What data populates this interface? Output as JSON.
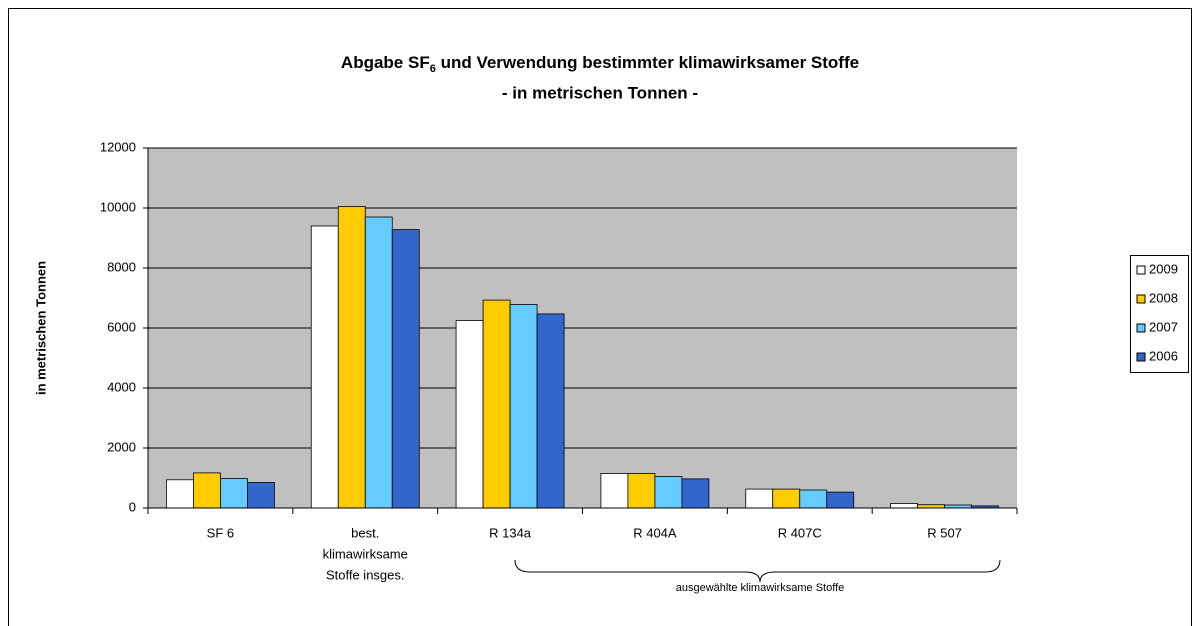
{
  "chart_data": {
    "type": "bar",
    "title": {
      "text": "Abgabe SF",
      "subscript": "6",
      "rest": " und Verwendung bestimmter klimawirksamer Stoffe"
    },
    "subtitle": "- in metrischen Tonnen -",
    "y_label": "in metrischen Tonnen",
    "categories": [
      [
        "SF 6"
      ],
      [
        "best.",
        "klimawirksame",
        "Stoffe insges."
      ],
      [
        "R 134a"
      ],
      [
        "R 404A"
      ],
      [
        "R 407C"
      ],
      [
        "R 507"
      ]
    ],
    "series": [
      {
        "name": "2009",
        "color": "#ffffff",
        "values": [
          940,
          9400,
          6250,
          1150,
          630,
          150
        ]
      },
      {
        "name": "2008",
        "color": "#ffcc00",
        "values": [
          1170,
          10050,
          6930,
          1150,
          630,
          110
        ]
      },
      {
        "name": "2007",
        "color": "#66ccff",
        "values": [
          980,
          9700,
          6780,
          1050,
          600,
          100
        ]
      },
      {
        "name": "2006",
        "color": "#3366cc",
        "values": [
          850,
          9280,
          6470,
          970,
          530,
          70
        ]
      }
    ],
    "annotation": "ausgewählte klimawirksame Stoffe",
    "ylim": [
      0,
      12000
    ],
    "yticks": [
      0,
      2000,
      4000,
      6000,
      8000,
      10000,
      12000
    ],
    "grid": true,
    "legend": "right",
    "plot_background": "#c0c0c0"
  }
}
